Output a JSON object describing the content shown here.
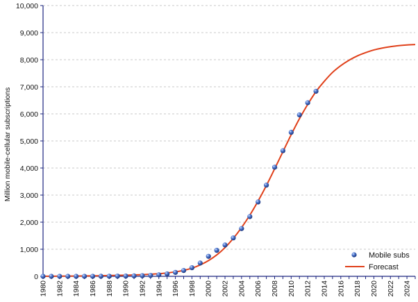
{
  "chart_data": {
    "type": "scatter+line",
    "title": "",
    "xlabel": "",
    "ylabel": "Million mobile-cellular subscriptions",
    "xlim": [
      1980,
      2025
    ],
    "ylim": [
      0,
      10000
    ],
    "y_ticks": [
      0,
      1000,
      2000,
      3000,
      4000,
      5000,
      6000,
      7000,
      8000,
      9000,
      10000
    ],
    "y_tick_labels": [
      "0",
      "1,000",
      "2,000",
      "3,000",
      "4,000",
      "5,000",
      "6,000",
      "7,000",
      "8,000",
      "9,000",
      "10,000"
    ],
    "x_ticks": [
      1980,
      1982,
      1984,
      1986,
      1988,
      1990,
      1992,
      1994,
      1996,
      1998,
      2000,
      2002,
      2004,
      2006,
      2008,
      2010,
      2012,
      2014,
      2016,
      2018,
      2020,
      2022,
      2024
    ],
    "x_tick_labels": [
      "1980",
      "1982",
      "1984",
      "1986",
      "1988",
      "1990",
      "1992",
      "1994",
      "1996",
      "1998",
      "2000",
      "2002",
      "2004",
      "2006",
      "2008",
      "2010",
      "2012",
      "2014",
      "2016",
      "2018",
      "2020",
      "2022",
      "2024"
    ],
    "grid": "horizontal-dashed",
    "legend_position": "bottom-right",
    "series": [
      {
        "name": "Mobile subs",
        "type": "scatter",
        "color": "#2a4fa8",
        "x": [
          1980,
          1981,
          1982,
          1983,
          1984,
          1985,
          1986,
          1987,
          1988,
          1989,
          1990,
          1991,
          1992,
          1993,
          1994,
          1995,
          1996,
          1997,
          1998,
          1999,
          2000,
          2001,
          2002,
          2003,
          2004,
          2005,
          2006,
          2007,
          2008,
          2009,
          2010,
          2011,
          2012,
          2013
        ],
        "y": [
          0,
          0,
          0,
          0,
          0,
          1,
          2,
          3,
          4,
          7,
          11,
          16,
          23,
          34,
          56,
          91,
          145,
          215,
          318,
          490,
          738,
          961,
          1157,
          1418,
          1763,
          2206,
          2746,
          3368,
          4030,
          4640,
          5320,
          5962,
          6411,
          6835
        ]
      },
      {
        "name": "Forecast",
        "type": "line",
        "color": "#e0401a",
        "x": [
          1980,
          1982,
          1984,
          1986,
          1988,
          1990,
          1992,
          1994,
          1995,
          1996,
          1997,
          1998,
          1999,
          2000,
          2001,
          2002,
          2003,
          2004,
          2005,
          2006,
          2007,
          2008,
          2009,
          2010,
          2011,
          2012,
          2013,
          2014,
          2015,
          2016,
          2017,
          2018,
          2019,
          2020,
          2021,
          2022,
          2023,
          2024,
          2025
        ],
        "y": [
          3,
          5,
          10,
          17,
          28,
          42,
          60,
          95,
          125,
          165,
          220,
          300,
          420,
          580,
          790,
          1060,
          1400,
          1800,
          2260,
          2780,
          3350,
          3970,
          4600,
          5230,
          5820,
          6350,
          6820,
          7200,
          7530,
          7780,
          7980,
          8140,
          8260,
          8360,
          8430,
          8480,
          8520,
          8545,
          8560
        ]
      }
    ]
  }
}
